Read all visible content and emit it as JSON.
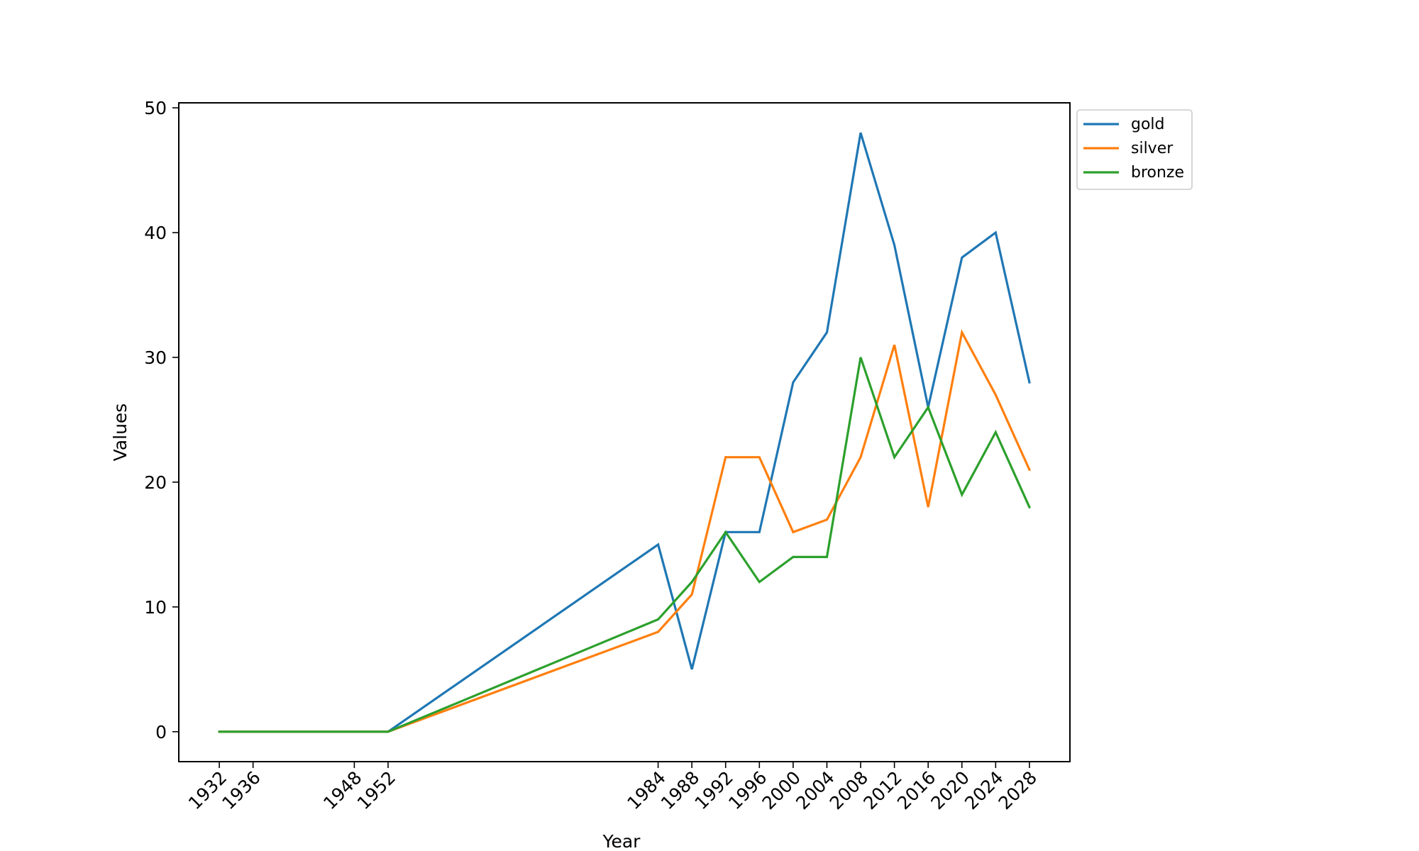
{
  "chart_data": {
    "type": "line",
    "title": "",
    "xlabel": "Year",
    "ylabel": "Values",
    "x": [
      1932,
      1936,
      1948,
      1952,
      1984,
      1988,
      1992,
      1996,
      2000,
      2004,
      2008,
      2012,
      2016,
      2020,
      2024,
      2028
    ],
    "xticks": [
      "1932",
      "1936",
      "1948",
      "1952",
      "1984",
      "1988",
      "1992",
      "1996",
      "2000",
      "2004",
      "2008",
      "2012",
      "2016",
      "2020",
      "2024",
      "2028"
    ],
    "yticks": [
      "0",
      "10",
      "20",
      "30",
      "40",
      "50"
    ],
    "xlim": [
      1927.2,
      2032.8
    ],
    "ylim": [
      -2.4,
      50.4
    ],
    "grid": false,
    "legend_position": "upper-right-outside",
    "series": [
      {
        "name": "gold",
        "color": "#1f77b4",
        "values": [
          0,
          0,
          0,
          0,
          15,
          5,
          16,
          16,
          28,
          32,
          48,
          39,
          26,
          38,
          40,
          28
        ]
      },
      {
        "name": "silver",
        "color": "#ff7f0e",
        "values": [
          0,
          0,
          0,
          0,
          8,
          11,
          22,
          22,
          16,
          17,
          22,
          31,
          18,
          32,
          27,
          21
        ]
      },
      {
        "name": "bronze",
        "color": "#2ca02c",
        "values": [
          0,
          0,
          0,
          0,
          9,
          12,
          16,
          12,
          14,
          14,
          30,
          22,
          26,
          19,
          24,
          18
        ]
      }
    ]
  }
}
